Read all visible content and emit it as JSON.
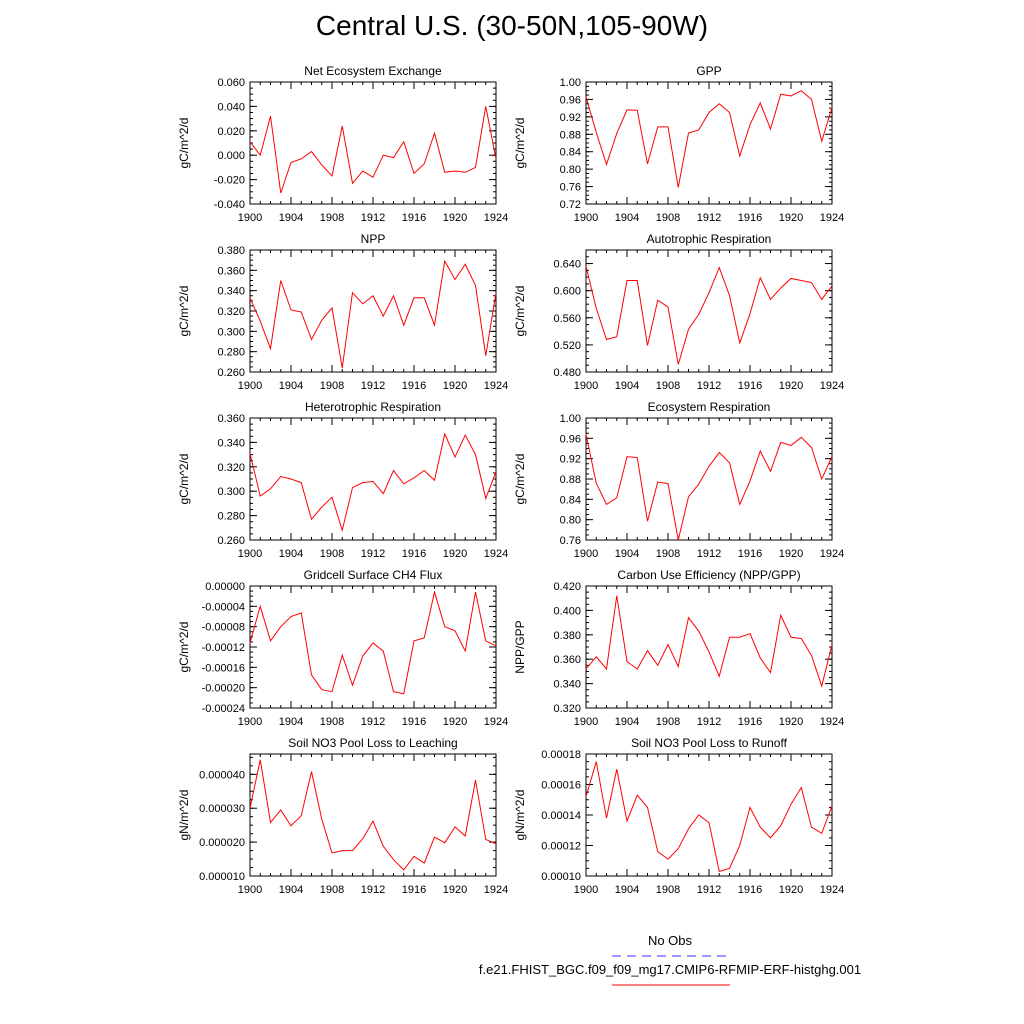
{
  "title": "Central U.S. (30-50N,105-90W)",
  "legend": {
    "obs_label": "No Obs",
    "obs_color": "#3333ff",
    "run_label": "f.e21.FHIST_BGC.f09_f09_mg17.CMIP6-RFMIP-ERF-histghg.001",
    "run_color": "#ff0000"
  },
  "chart_data": [
    {
      "type": "line",
      "title": "Net Ecosystem Exchange",
      "ylabel": "gC/m^2/d",
      "xlim": [
        1900,
        1924
      ],
      "ylim": [
        -0.04,
        0.06
      ],
      "yticks": [
        "-0.040",
        "-0.020",
        "0.000",
        "0.020",
        "0.040",
        "0.060"
      ],
      "xticks": [
        "1900",
        "1904",
        "1908",
        "1912",
        "1916",
        "1920",
        "1924"
      ],
      "series": [
        {
          "color": "#ff0000",
          "x": [
            1900,
            1901,
            1902,
            1903,
            1904,
            1905,
            1906,
            1907,
            1908,
            1909,
            1910,
            1911,
            1912,
            1913,
            1914,
            1915,
            1916,
            1917,
            1918,
            1919,
            1920,
            1921,
            1922,
            1923,
            1924
          ],
          "values": [
            0.011,
            0.0,
            0.032,
            -0.031,
            -0.006,
            -0.003,
            0.003,
            -0.008,
            -0.017,
            0.024,
            -0.023,
            -0.013,
            -0.018,
            0.0,
            -0.002,
            0.011,
            -0.015,
            -0.007,
            0.018,
            -0.014,
            -0.013,
            -0.014,
            -0.01,
            0.04,
            -0.003
          ]
        }
      ]
    },
    {
      "type": "line",
      "title": "GPP",
      "ylabel": "gC/m^2/d",
      "xlim": [
        1900,
        1924
      ],
      "ylim": [
        0.72,
        1.0
      ],
      "yticks": [
        "0.72",
        "0.76",
        "0.80",
        "0.84",
        "0.88",
        "0.92",
        "0.96",
        "1.00"
      ],
      "xticks": [
        "1900",
        "1904",
        "1908",
        "1912",
        "1916",
        "1920",
        "1924"
      ],
      "series": [
        {
          "color": "#ff0000",
          "x": [
            1900,
            1901,
            1902,
            1903,
            1904,
            1905,
            1906,
            1907,
            1908,
            1909,
            1910,
            1911,
            1912,
            1913,
            1914,
            1915,
            1916,
            1917,
            1918,
            1919,
            1920,
            1921,
            1922,
            1923,
            1924
          ],
          "values": [
            0.966,
            0.884,
            0.811,
            0.882,
            0.936,
            0.935,
            0.812,
            0.897,
            0.897,
            0.758,
            0.883,
            0.89,
            0.93,
            0.95,
            0.93,
            0.83,
            0.902,
            0.952,
            0.892,
            0.972,
            0.968,
            0.98,
            0.96,
            0.864,
            0.942
          ]
        }
      ]
    },
    {
      "type": "line",
      "title": "NPP",
      "ylabel": "gC/m^2/d",
      "xlim": [
        1900,
        1924
      ],
      "ylim": [
        0.26,
        0.38
      ],
      "yticks": [
        "0.260",
        "0.280",
        "0.300",
        "0.320",
        "0.340",
        "0.360",
        "0.380"
      ],
      "xticks": [
        "1900",
        "1904",
        "1908",
        "1912",
        "1916",
        "1920",
        "1924"
      ],
      "series": [
        {
          "color": "#ff0000",
          "x": [
            1900,
            1901,
            1902,
            1903,
            1904,
            1905,
            1906,
            1907,
            1908,
            1909,
            1910,
            1911,
            1912,
            1913,
            1914,
            1915,
            1916,
            1917,
            1918,
            1919,
            1920,
            1921,
            1922,
            1923,
            1924
          ],
          "values": [
            0.333,
            0.31,
            0.283,
            0.35,
            0.321,
            0.319,
            0.292,
            0.311,
            0.323,
            0.264,
            0.338,
            0.327,
            0.335,
            0.315,
            0.335,
            0.306,
            0.333,
            0.333,
            0.306,
            0.369,
            0.351,
            0.366,
            0.345,
            0.276,
            0.338
          ]
        }
      ]
    },
    {
      "type": "line",
      "title": "Autotrophic Respiration",
      "ylabel": "gC/m^2/d",
      "xlim": [
        1900,
        1924
      ],
      "ylim": [
        0.48,
        0.66
      ],
      "yticks": [
        "0.480",
        "0.520",
        "0.560",
        "0.600",
        "0.640"
      ],
      "xticks": [
        "1900",
        "1904",
        "1908",
        "1912",
        "1916",
        "1920",
        "1924"
      ],
      "series": [
        {
          "color": "#ff0000",
          "x": [
            1900,
            1901,
            1902,
            1903,
            1904,
            1905,
            1906,
            1907,
            1908,
            1909,
            1910,
            1911,
            1912,
            1913,
            1914,
            1915,
            1916,
            1917,
            1918,
            1919,
            1920,
            1921,
            1922,
            1923,
            1924
          ],
          "values": [
            0.636,
            0.574,
            0.528,
            0.532,
            0.615,
            0.615,
            0.519,
            0.586,
            0.576,
            0.491,
            0.543,
            0.565,
            0.597,
            0.634,
            0.593,
            0.523,
            0.566,
            0.619,
            0.587,
            0.604,
            0.618,
            0.615,
            0.612,
            0.587,
            0.607
          ]
        }
      ]
    },
    {
      "type": "line",
      "title": "Heterotrophic Respiration",
      "ylabel": "gC/m^2/d",
      "xlim": [
        1900,
        1924
      ],
      "ylim": [
        0.26,
        0.36
      ],
      "yticks": [
        "0.260",
        "0.280",
        "0.300",
        "0.320",
        "0.340",
        "0.360"
      ],
      "xticks": [
        "1900",
        "1904",
        "1908",
        "1912",
        "1916",
        "1920",
        "1924"
      ],
      "series": [
        {
          "color": "#ff0000",
          "x": [
            1900,
            1901,
            1902,
            1903,
            1904,
            1905,
            1906,
            1907,
            1908,
            1909,
            1910,
            1911,
            1912,
            1913,
            1914,
            1915,
            1916,
            1917,
            1918,
            1919,
            1920,
            1921,
            1922,
            1923,
            1924
          ],
          "values": [
            0.331,
            0.296,
            0.302,
            0.312,
            0.31,
            0.307,
            0.277,
            0.287,
            0.295,
            0.268,
            0.303,
            0.307,
            0.308,
            0.298,
            0.317,
            0.306,
            0.311,
            0.317,
            0.309,
            0.347,
            0.328,
            0.346,
            0.33,
            0.294,
            0.316
          ]
        }
      ]
    },
    {
      "type": "line",
      "title": "Ecosystem Respiration",
      "ylabel": "gC/m^2/d",
      "xlim": [
        1900,
        1924
      ],
      "ylim": [
        0.76,
        1.0
      ],
      "yticks": [
        "0.76",
        "0.80",
        "0.84",
        "0.88",
        "0.92",
        "0.96",
        "1.00"
      ],
      "xticks": [
        "1900",
        "1904",
        "1908",
        "1912",
        "1916",
        "1920",
        "1924"
      ],
      "series": [
        {
          "color": "#ff0000",
          "x": [
            1900,
            1901,
            1902,
            1903,
            1904,
            1905,
            1906,
            1907,
            1908,
            1909,
            1910,
            1911,
            1912,
            1913,
            1914,
            1915,
            1916,
            1917,
            1918,
            1919,
            1920,
            1921,
            1922,
            1923,
            1924
          ],
          "values": [
            0.968,
            0.872,
            0.83,
            0.843,
            0.924,
            0.922,
            0.797,
            0.874,
            0.871,
            0.76,
            0.845,
            0.87,
            0.905,
            0.932,
            0.912,
            0.83,
            0.876,
            0.935,
            0.895,
            0.952,
            0.946,
            0.962,
            0.942,
            0.88,
            0.924
          ]
        }
      ]
    },
    {
      "type": "line",
      "title": "Gridcell Surface CH4 Flux",
      "ylabel": "gC/m^2/d",
      "xlim": [
        1900,
        1924
      ],
      "ylim": [
        -0.00024,
        0.0
      ],
      "yticks": [
        "-0.00024",
        "-0.00020",
        "-0.00016",
        "-0.00012",
        "-0.00008",
        "-0.00004",
        "0.00000"
      ],
      "xticks": [
        "1900",
        "1904",
        "1908",
        "1912",
        "1916",
        "1920",
        "1924"
      ],
      "series": [
        {
          "color": "#ff0000",
          "x": [
            1900,
            1901,
            1902,
            1903,
            1904,
            1905,
            1906,
            1907,
            1908,
            1909,
            1910,
            1911,
            1912,
            1913,
            1914,
            1915,
            1916,
            1917,
            1918,
            1919,
            1920,
            1921,
            1922,
            1923,
            1924
          ],
          "values": [
            -0.000112,
            -4e-05,
            -0.000108,
            -8e-05,
            -6e-05,
            -5.3e-05,
            -0.000175,
            -0.000204,
            -0.000208,
            -0.000136,
            -0.000195,
            -0.000138,
            -0.000112,
            -0.000128,
            -0.000208,
            -0.000212,
            -0.000108,
            -0.000102,
            -1.2e-05,
            -8e-05,
            -8.8e-05,
            -0.000128,
            -1.2e-05,
            -0.000108,
            -0.000118
          ]
        }
      ]
    },
    {
      "type": "line",
      "title": "Carbon Use Efficiency (NPP/GPP)",
      "ylabel": "NPP/GPP",
      "xlim": [
        1900,
        1924
      ],
      "ylim": [
        0.32,
        0.42
      ],
      "yticks": [
        "0.320",
        "0.340",
        "0.360",
        "0.380",
        "0.400",
        "0.420"
      ],
      "xticks": [
        "1900",
        "1904",
        "1908",
        "1912",
        "1916",
        "1920",
        "1924"
      ],
      "series": [
        {
          "color": "#ff0000",
          "x": [
            1900,
            1901,
            1902,
            1903,
            1904,
            1905,
            1906,
            1907,
            1908,
            1909,
            1910,
            1911,
            1912,
            1913,
            1914,
            1915,
            1916,
            1917,
            1918,
            1919,
            1920,
            1921,
            1922,
            1923,
            1924
          ],
          "values": [
            0.352,
            0.362,
            0.352,
            0.412,
            0.358,
            0.352,
            0.367,
            0.355,
            0.372,
            0.354,
            0.394,
            0.383,
            0.366,
            0.346,
            0.378,
            0.378,
            0.381,
            0.361,
            0.349,
            0.396,
            0.378,
            0.377,
            0.363,
            0.338,
            0.372
          ]
        }
      ]
    },
    {
      "type": "line",
      "title": "Soil NO3 Pool Loss to Leaching",
      "ylabel": "gN/m^2/d",
      "xlim": [
        1900,
        1924
      ],
      "ylim": [
        1e-05,
        4.6e-05
      ],
      "yticks": [
        "0.000010",
        "0.000020",
        "0.000030",
        "0.000040"
      ],
      "xticks": [
        "1900",
        "1904",
        "1908",
        "1912",
        "1916",
        "1920",
        "1924"
      ],
      "series": [
        {
          "color": "#ff0000",
          "x": [
            1900,
            1901,
            1902,
            1903,
            1904,
            1905,
            1906,
            1907,
            1908,
            1909,
            1910,
            1911,
            1912,
            1913,
            1914,
            1915,
            1916,
            1917,
            1918,
            1919,
            1920,
            1921,
            1922,
            1923,
            1924
          ],
          "values": [
            3e-05,
            4.43e-05,
            2.58e-05,
            2.95e-05,
            2.48e-05,
            2.78e-05,
            4.08e-05,
            2.68e-05,
            1.68e-05,
            1.75e-05,
            1.75e-05,
            2.1e-05,
            2.62e-05,
            1.88e-05,
            1.48e-05,
            1.18e-05,
            1.58e-05,
            1.38e-05,
            2.15e-05,
            1.98e-05,
            2.45e-05,
            2.18e-05,
            3.83e-05,
            2.08e-05,
            1.95e-05
          ]
        }
      ]
    },
    {
      "type": "line",
      "title": "Soil NO3 Pool Loss to Runoff",
      "ylabel": "gN/m^2/d",
      "xlim": [
        1900,
        1924
      ],
      "ylim": [
        0.0001,
        0.00018
      ],
      "yticks": [
        "0.00010",
        "0.00012",
        "0.00014",
        "0.00016",
        "0.00018"
      ],
      "xticks": [
        "1900",
        "1904",
        "1908",
        "1912",
        "1916",
        "1920",
        "1924"
      ],
      "series": [
        {
          "color": "#ff0000",
          "x": [
            1900,
            1901,
            1902,
            1903,
            1904,
            1905,
            1906,
            1907,
            1908,
            1909,
            1910,
            1911,
            1912,
            1913,
            1914,
            1915,
            1916,
            1917,
            1918,
            1919,
            1920,
            1921,
            1922,
            1923,
            1924
          ],
          "values": [
            0.000152,
            0.000175,
            0.000138,
            0.00017,
            0.000136,
            0.000153,
            0.000145,
            0.000116,
            0.000111,
            0.000118,
            0.000131,
            0.00014,
            0.000135,
            0.000103,
            0.000105,
            0.00012,
            0.000145,
            0.000132,
            0.000125,
            0.000133,
            0.000147,
            0.000158,
            0.000132,
            0.000128,
            0.000146
          ]
        }
      ]
    }
  ]
}
